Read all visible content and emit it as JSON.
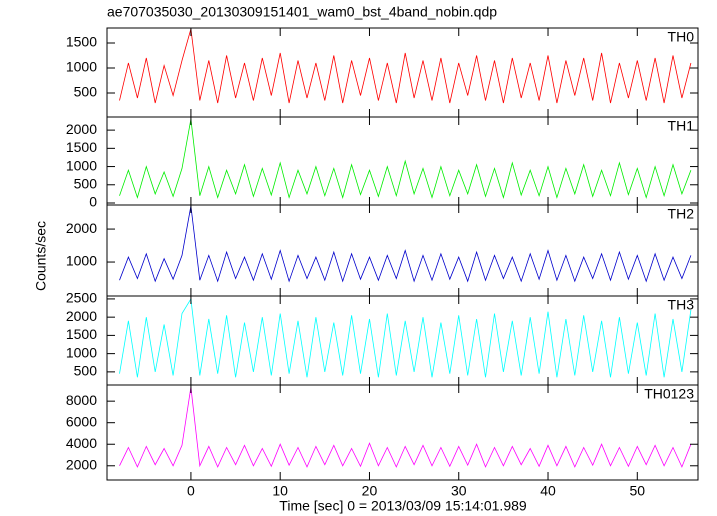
{
  "title": "ae707035030_20130309151401_wam0_bst_4band_nobin.qdp",
  "x_label": "Time [sec] 0 = 2013/03/09 15:14:01.989",
  "y_label": "Counts/sec",
  "xlim": [
    -9.4,
    56.8
  ],
  "xticks": [
    0,
    10,
    20,
    30,
    40,
    50
  ],
  "x": [
    -8,
    -7,
    -6,
    -5,
    -4,
    -3,
    -2,
    -1,
    0,
    1,
    2,
    3,
    4,
    5,
    6,
    7,
    8,
    9,
    10,
    11,
    12,
    13,
    14,
    15,
    16,
    17,
    18,
    19,
    20,
    21,
    22,
    23,
    24,
    25,
    26,
    27,
    28,
    29,
    30,
    31,
    32,
    33,
    34,
    35,
    36,
    37,
    38,
    39,
    40,
    41,
    42,
    43,
    44,
    45,
    46,
    47,
    48,
    49,
    50,
    51,
    52,
    53,
    54,
    55,
    56
  ],
  "chart_data": [
    {
      "type": "line",
      "name": "TH0",
      "color": "#ff0000",
      "ylim": [
        20,
        1800
      ],
      "yticks": [
        500,
        1000,
        1500
      ],
      "values": [
        350,
        1100,
        400,
        1200,
        300,
        1050,
        450,
        1150,
        1780,
        350,
        1150,
        300,
        1250,
        400,
        1100,
        350,
        1200,
        450,
        1300,
        300,
        1150,
        400,
        1100,
        350,
        1250,
        300,
        1150,
        450,
        1200,
        350,
        1100,
        300,
        1300,
        400,
        1150,
        350,
        1200,
        300,
        1100,
        450,
        1250,
        350,
        1150,
        300,
        1200,
        400,
        1100,
        350,
        1250,
        300,
        1150,
        450,
        1200,
        350,
        1300,
        300,
        1100,
        400,
        1150,
        350,
        1200,
        300,
        1250,
        400,
        1100
      ]
    },
    {
      "type": "line",
      "name": "TH1",
      "color": "#00ee00",
      "ylim": [
        -55,
        2360
      ],
      "yticks": [
        0,
        500,
        1000,
        1500,
        2000
      ],
      "values": [
        200,
        900,
        150,
        1000,
        250,
        850,
        180,
        950,
        2300,
        200,
        1000,
        150,
        900,
        250,
        1050,
        180,
        950,
        220,
        1100,
        150,
        900,
        250,
        1000,
        200,
        950,
        150,
        1050,
        230,
        900,
        180,
        1000,
        200,
        1150,
        250,
        950,
        150,
        1000,
        200,
        900,
        250,
        1050,
        180,
        950,
        150,
        1100,
        220,
        900,
        200,
        1000,
        150,
        950,
        250,
        1050,
        180,
        900,
        200,
        1100,
        230,
        950,
        150,
        1000,
        200,
        1050,
        250,
        900
      ]
    },
    {
      "type": "line",
      "name": "TH2",
      "color": "#0000cc",
      "ylim": [
        -30,
        2730
      ],
      "yticks": [
        1000,
        2000
      ],
      "values": [
        450,
        1150,
        500,
        1250,
        420,
        1100,
        480,
        1200,
        2700,
        450,
        1200,
        420,
        1300,
        500,
        1150,
        450,
        1250,
        480,
        1350,
        420,
        1200,
        500,
        1150,
        450,
        1300,
        420,
        1250,
        480,
        1150,
        450,
        1200,
        500,
        1350,
        420,
        1200,
        450,
        1250,
        480,
        1150,
        420,
        1300,
        450,
        1200,
        500,
        1150,
        420,
        1250,
        480,
        1350,
        450,
        1200,
        420,
        1150,
        500,
        1250,
        450,
        1300,
        480,
        1200,
        420,
        1250,
        450,
        1150,
        500,
        1200
      ]
    },
    {
      "type": "line",
      "name": "TH3",
      "color": "#00ffff",
      "ylim": [
        140,
        2580
      ],
      "yticks": [
        500,
        1000,
        1500,
        2000,
        2500
      ],
      "values": [
        450,
        1900,
        350,
        2000,
        500,
        1800,
        400,
        2100,
        2500,
        400,
        1950,
        450,
        2050,
        350,
        1850,
        500,
        2000,
        400,
        2100,
        450,
        1900,
        350,
        2000,
        500,
        1850,
        400,
        2050,
        450,
        1950,
        350,
        2100,
        400,
        1900,
        500,
        2000,
        350,
        1850,
        450,
        2050,
        400,
        1950,
        350,
        2100,
        500,
        1900,
        400,
        2000,
        450,
        2150,
        350,
        1950,
        400,
        2050,
        500,
        1900,
        350,
        2000,
        450,
        1850,
        400,
        2100,
        350,
        1950,
        500,
        2200
      ]
    },
    {
      "type": "line",
      "name": "TH0123",
      "color": "#ff00ff",
      "ylim": [
        680,
        9500
      ],
      "yticks": [
        2000,
        4000,
        6000,
        8000
      ],
      "values": [
        2000,
        3700,
        1900,
        3800,
        2100,
        3600,
        2000,
        3900,
        9300,
        2000,
        3800,
        1900,
        3700,
        2100,
        3900,
        2000,
        3600,
        1950,
        4000,
        2050,
        3700,
        1900,
        3800,
        2100,
        3900,
        2000,
        3600,
        1950,
        4100,
        2000,
        3700,
        1900,
        3800,
        2100,
        3900,
        2000,
        3700,
        1950,
        3800,
        2050,
        4000,
        1900,
        3700,
        2000,
        3800,
        2100,
        3600,
        1950,
        3900,
        2000,
        3800,
        1900,
        3700,
        2050,
        4000,
        2000,
        3700,
        1950,
        3800,
        2100,
        3900,
        2000,
        3700,
        1900,
        4000
      ]
    }
  ]
}
